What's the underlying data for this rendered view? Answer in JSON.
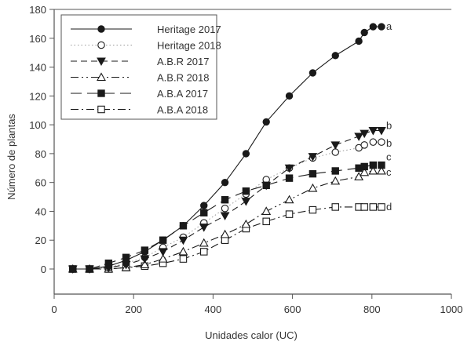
{
  "chart_data": {
    "type": "line",
    "title": "",
    "xlabel": "Unidades calor (UC)",
    "ylabel": "Número de plantas",
    "xlim": [
      0,
      1000
    ],
    "ylim": [
      -18,
      180
    ],
    "xticks": [
      0,
      200,
      400,
      600,
      800,
      1000
    ],
    "yticks": [
      0,
      20,
      40,
      60,
      80,
      100,
      120,
      140,
      160,
      180
    ],
    "grid": false,
    "legend_position": "upper-left",
    "x": [
      47,
      89,
      137,
      181,
      228,
      274,
      325,
      377,
      430,
      483,
      534,
      592,
      651,
      708,
      767,
      781,
      803,
      824
    ],
    "series": [
      {
        "name": "Heritage 2017",
        "marker": "filled-circle",
        "line": "solid",
        "annotation": "a",
        "values": [
          0,
          0,
          2,
          6,
          12,
          20,
          30,
          44,
          60,
          80,
          102,
          120,
          136,
          148,
          158,
          164,
          168,
          168
        ]
      },
      {
        "name": "Heritage 2018",
        "marker": "open-circle",
        "line": "dotted",
        "annotation": "b",
        "values": [
          0,
          0,
          1,
          4,
          8,
          15,
          22,
          32,
          42,
          52,
          62,
          70,
          77,
          81,
          84,
          86,
          88,
          88
        ]
      },
      {
        "name": "A.B.R 2017",
        "marker": "filled-triangle-down",
        "line": "dashed",
        "annotation": "b",
        "values": [
          0,
          0,
          1,
          3,
          7,
          12,
          20,
          29,
          37,
          47,
          58,
          70,
          78,
          86,
          92,
          94,
          96,
          96
        ]
      },
      {
        "name": "A.B.R 2018",
        "marker": "open-triangle-up",
        "line": "dash-dot-dot",
        "annotation": "c",
        "values": [
          0,
          0,
          0,
          1,
          3,
          7,
          12,
          18,
          24,
          31,
          40,
          48,
          56,
          61,
          64,
          67,
          68,
          68
        ]
      },
      {
        "name": "A.B.A 2017",
        "marker": "filled-square",
        "line": "long-dash",
        "annotation": "c",
        "values": [
          0,
          0,
          4,
          8,
          13,
          20,
          30,
          39,
          48,
          54,
          58,
          63,
          66,
          68,
          70,
          71,
          72,
          72
        ]
      },
      {
        "name": "A.B.A 2018",
        "marker": "open-square",
        "line": "dash-dot",
        "annotation": "d",
        "values": [
          0,
          0,
          0,
          1,
          2,
          4,
          7,
          12,
          20,
          28,
          33,
          38,
          41,
          43,
          43,
          43,
          43,
          43
        ]
      }
    ],
    "annotations": [
      {
        "text": "a",
        "series": "Heritage 2017"
      },
      {
        "text": "b",
        "series": "A.B.R 2017"
      },
      {
        "text": "b",
        "series": "Heritage 2018"
      },
      {
        "text": "c",
        "series": "A.B.A 2017"
      },
      {
        "text": "c",
        "series": "A.B.R 2018"
      },
      {
        "text": "d",
        "series": "A.B.A 2018"
      }
    ]
  },
  "colors": {
    "axis": "#555555",
    "series": "#1a1a1a",
    "text": "#333333"
  }
}
